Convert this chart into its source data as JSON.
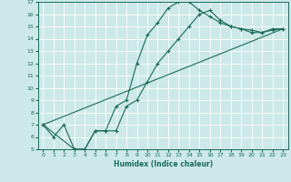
{
  "xlabel": "Humidex (Indice chaleur)",
  "background_color": "#cce8e8",
  "grid_color": "#aacccc",
  "line_color": "#1a6b5a",
  "xlim": [
    -0.5,
    23.5
  ],
  "ylim": [
    5,
    17
  ],
  "xticks": [
    0,
    1,
    2,
    3,
    4,
    5,
    6,
    7,
    8,
    9,
    10,
    11,
    12,
    13,
    14,
    15,
    16,
    17,
    18,
    19,
    20,
    21,
    22,
    23
  ],
  "yticks": [
    5,
    6,
    7,
    8,
    9,
    10,
    11,
    12,
    13,
    14,
    15,
    16,
    17
  ],
  "series": [
    {
      "x": [
        0,
        1,
        2,
        3,
        4,
        5,
        6,
        7,
        8,
        9,
        10,
        11,
        12,
        13,
        14,
        15,
        16,
        17,
        18,
        19,
        20,
        21,
        22,
        23
      ],
      "y": [
        7,
        6,
        7,
        5,
        5,
        6.5,
        6.5,
        8.5,
        9,
        12,
        14.3,
        15.3,
        16.5,
        17,
        17,
        16.3,
        15.8,
        15.3,
        15,
        14.8,
        14.5,
        14.5,
        14.8,
        14.8
      ],
      "marker": true
    },
    {
      "x": [
        0,
        3,
        4,
        5,
        6,
        7,
        8,
        9,
        10,
        11,
        12,
        13,
        14,
        15,
        16,
        17,
        18,
        19,
        20,
        21,
        22,
        23
      ],
      "y": [
        7,
        5,
        5,
        6.5,
        6.5,
        6.5,
        8.5,
        9,
        10.5,
        12,
        13,
        14,
        15,
        16,
        16.3,
        15.5,
        15.0,
        14.8,
        14.7,
        14.5,
        14.7,
        14.8
      ],
      "marker": true
    },
    {
      "x": [
        0,
        23
      ],
      "y": [
        7,
        14.8
      ],
      "marker": false
    }
  ]
}
